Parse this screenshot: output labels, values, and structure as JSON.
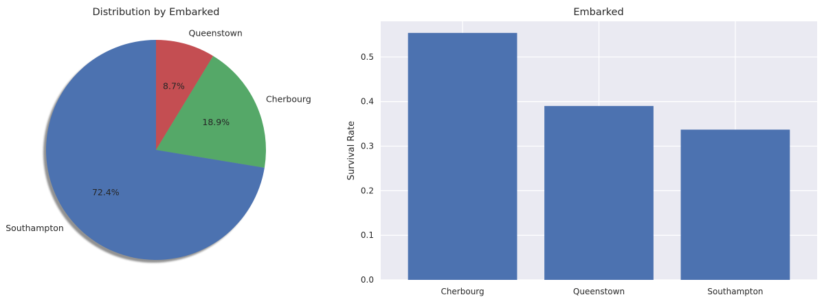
{
  "chart_data": [
    {
      "type": "pie",
      "title": "Distribution by Embarked",
      "categories": [
        "Southampton",
        "Cherbourg",
        "Queenstown"
      ],
      "values": [
        72.4,
        18.9,
        8.7
      ],
      "value_labels": [
        "72.4%",
        "18.9%",
        "8.7%"
      ],
      "colors": [
        "#4c72b0",
        "#55a868",
        "#c44e52"
      ],
      "start_angle": "top, counter-clockwise order: Queenstown, Cherbourg, Southampton",
      "shadow": true
    },
    {
      "type": "bar",
      "title": "Embarked",
      "categories": [
        "Cherbourg",
        "Queenstown",
        "Southampton"
      ],
      "values": [
        0.554,
        0.39,
        0.337
      ],
      "xlabel": "",
      "ylabel": "Survival Rate",
      "ylim": [
        0,
        0.58
      ],
      "yticks": [
        0.0,
        0.1,
        0.2,
        0.3,
        0.4,
        0.5
      ],
      "ytick_labels": [
        "0.0",
        "0.1",
        "0.2",
        "0.3",
        "0.4",
        "0.5"
      ],
      "grid": true,
      "bar_color": "#4c72b0",
      "background": "#eaeaf2"
    }
  ]
}
